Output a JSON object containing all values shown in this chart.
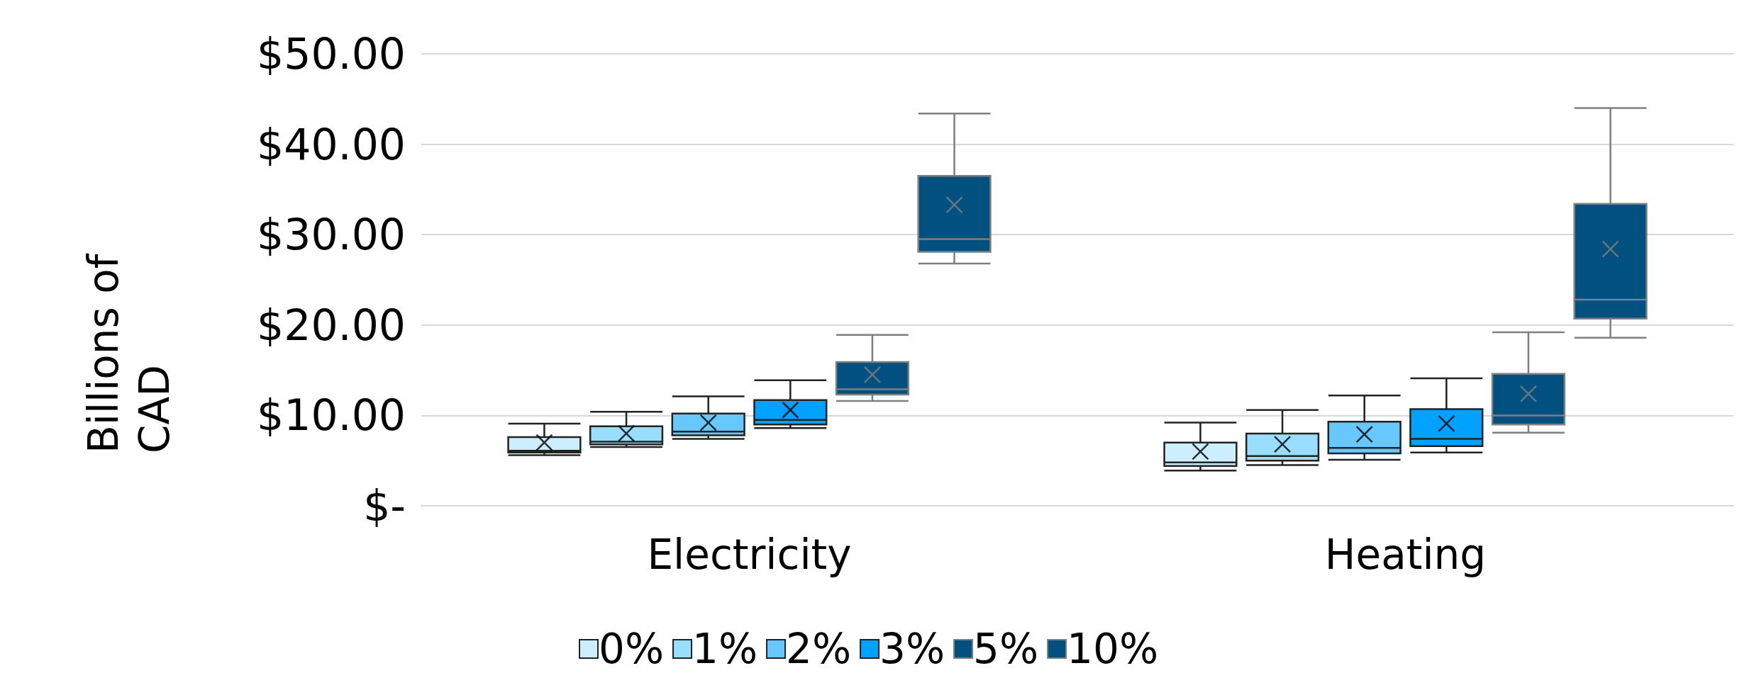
{
  "chart_data": {
    "type": "box",
    "ylabel": "Billions of CAD",
    "categories": [
      "Electricity",
      "Heating"
    ],
    "ylim": [
      0,
      50
    ],
    "yticks": [
      {
        "value": 0,
        "label": "$-"
      },
      {
        "value": 10,
        "label": "$10.00"
      },
      {
        "value": 20,
        "label": "$20.00"
      },
      {
        "value": 30,
        "label": "$30.00"
      },
      {
        "value": 40,
        "label": "$40.00"
      },
      {
        "value": 50,
        "label": "$50.00"
      }
    ],
    "grid": "y",
    "legend": "bottom",
    "marker": "cross",
    "series": [
      {
        "name": "0%",
        "color": "#cceeff",
        "boxes": [
          {
            "low": 5.6,
            "q1": 5.9,
            "median": 6.1,
            "q3": 7.6,
            "high": 9.1,
            "mean": 7.0
          },
          {
            "low": 3.9,
            "q1": 4.4,
            "median": 4.8,
            "q3": 7.0,
            "high": 9.2,
            "mean": 6.0
          }
        ]
      },
      {
        "name": "1%",
        "color": "#99ddff",
        "boxes": [
          {
            "low": 6.5,
            "q1": 6.8,
            "median": 7.1,
            "q3": 8.8,
            "high": 10.4,
            "mean": 8.0
          },
          {
            "low": 4.5,
            "q1": 5.0,
            "median": 5.5,
            "q3": 8.0,
            "high": 10.6,
            "mean": 6.8
          }
        ]
      },
      {
        "name": "2%",
        "color": "#66c8ff",
        "boxes": [
          {
            "low": 7.4,
            "q1": 7.8,
            "median": 8.2,
            "q3": 10.2,
            "high": 12.1,
            "mean": 9.2
          },
          {
            "low": 5.1,
            "q1": 5.8,
            "median": 6.4,
            "q3": 9.3,
            "high": 12.2,
            "mean": 7.9
          }
        ]
      },
      {
        "name": "3%",
        "color": "#00a2ff",
        "boxes": [
          {
            "low": 8.6,
            "q1": 9.0,
            "median": 9.5,
            "q3": 11.7,
            "high": 13.9,
            "mean": 10.6
          },
          {
            "low": 5.9,
            "q1": 6.6,
            "median": 7.4,
            "q3": 10.7,
            "high": 14.1,
            "mean": 9.1
          }
        ]
      },
      {
        "name": "5%",
        "color": "#00517f",
        "boxes": [
          {
            "low": 11.6,
            "q1": 12.3,
            "median": 12.9,
            "q3": 15.9,
            "high": 18.9,
            "mean": 14.5
          },
          {
            "low": 8.1,
            "q1": 9.0,
            "median": 10.0,
            "q3": 14.6,
            "high": 19.2,
            "mean": 12.4
          }
        ]
      },
      {
        "name": "10%",
        "color": "#00517f",
        "boxes": [
          {
            "low": 26.8,
            "q1": 28.1,
            "median": 29.5,
            "q3": 36.5,
            "high": 43.4,
            "mean": 33.3
          },
          {
            "low": 18.6,
            "q1": 20.7,
            "median": 22.8,
            "q3": 33.4,
            "high": 44.0,
            "mean": 28.4
          }
        ]
      }
    ]
  }
}
